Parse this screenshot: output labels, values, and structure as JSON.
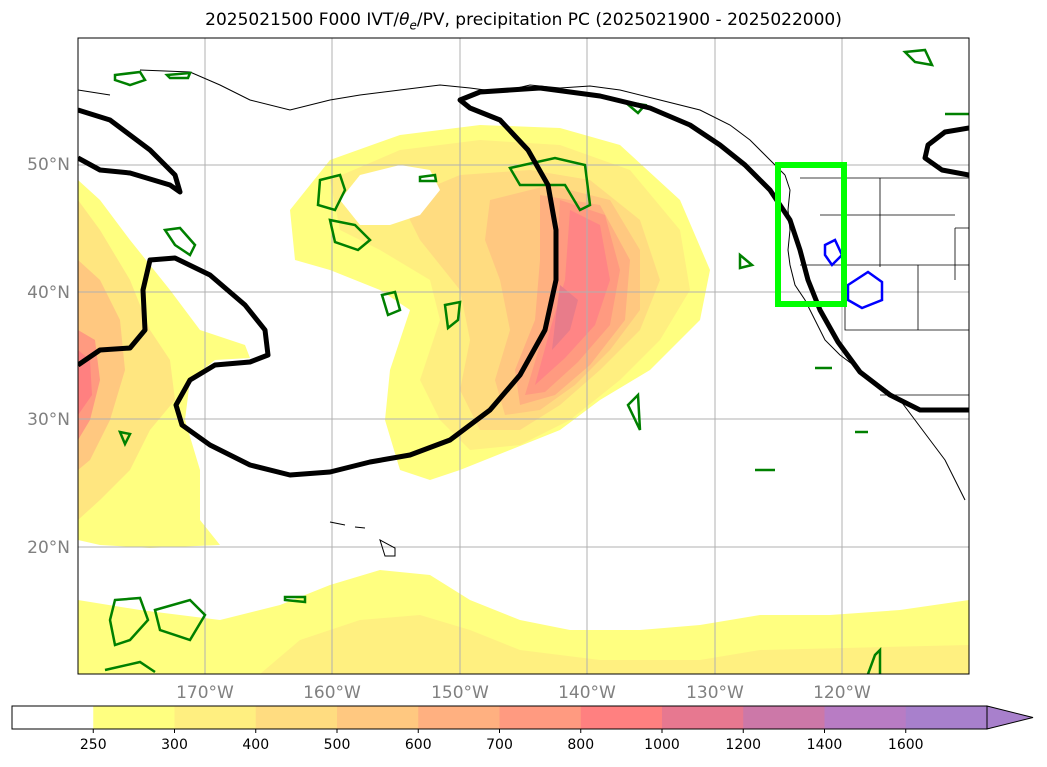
{
  "title": {
    "prefix": "2025021500 F000 IVT/",
    "theta": "θ",
    "sub": "e",
    "suffix": "/PV, precipitation PC (2025021900 - 2025022000)"
  },
  "map": {
    "lat_labels": [
      "50°N",
      "40°N",
      "30°N",
      "20°N"
    ],
    "lon_labels": [
      "170°W",
      "160°W",
      "150°W",
      "140°W",
      "130°W",
      "120°W"
    ]
  },
  "colorbar": {
    "ticks": [
      "250",
      "300",
      "400",
      "500",
      "600",
      "700",
      "800",
      "1000",
      "1200",
      "1400",
      "1600"
    ],
    "colors": [
      "#ffffff",
      "#ffff80",
      "#ffef80",
      "#ffdc80",
      "#ffc880",
      "#ffb080",
      "#ff9a80",
      "#ff8080",
      "#e77890",
      "#cc78a8",
      "#b87cc4",
      "#a880cc"
    ],
    "extend": "max"
  },
  "colors": {
    "pv_contour": "#000000",
    "theta_contour_green": "#008000",
    "theta_contour_blue": "#0000ff",
    "highlight_box": "#00ff00",
    "grid": "#b0b0b0",
    "label_gray": "#808080"
  }
}
